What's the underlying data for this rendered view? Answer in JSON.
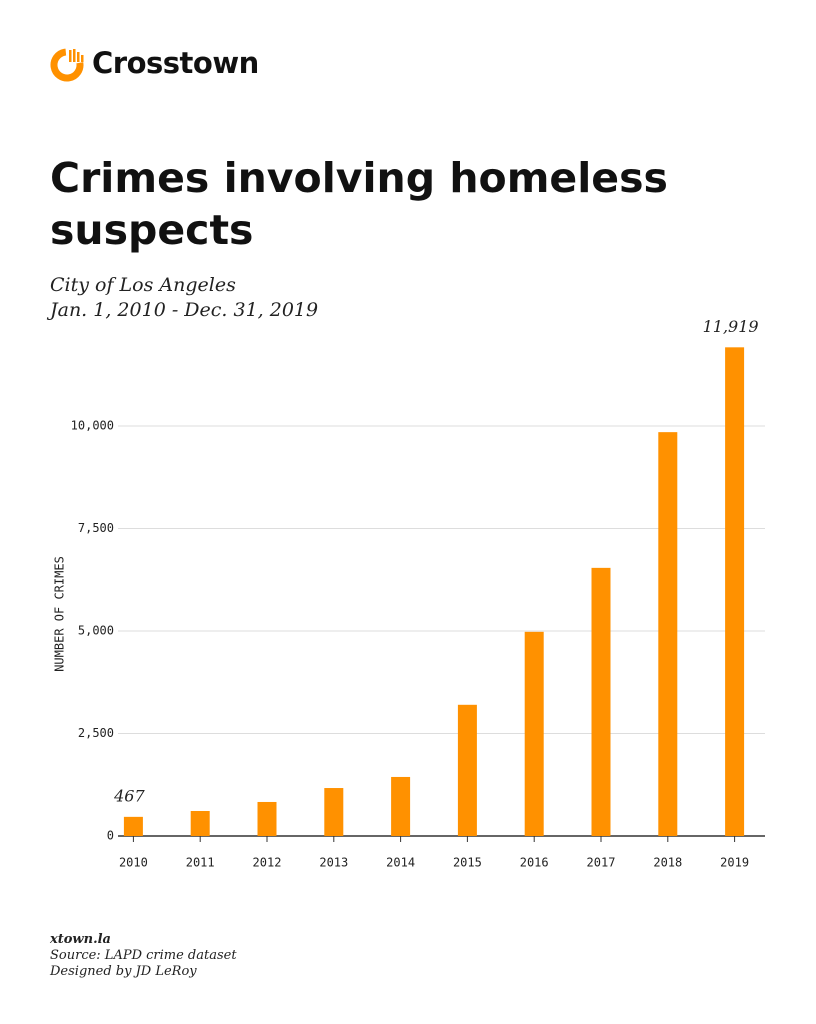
{
  "brand": "Crosstown",
  "chart_data": {
    "type": "bar",
    "title": "Crimes involving homeless suspects",
    "subtitle": [
      "City of Los Angeles",
      "Jan. 1, 2010 - Dec. 31, 2019"
    ],
    "y_label": "NUMBER OF CRIMES",
    "categories": [
      "2010",
      "2011",
      "2012",
      "2013",
      "2014",
      "2015",
      "2016",
      "2017",
      "2018",
      "2019"
    ],
    "values": [
      467,
      610,
      830,
      1170,
      1440,
      3200,
      4980,
      6540,
      9850,
      11919
    ],
    "value_labels": [
      "467",
      null,
      null,
      null,
      null,
      null,
      null,
      null,
      null,
      "11,919"
    ],
    "color": "#ff9100",
    "ylim": [
      0,
      12000
    ],
    "yticks": [
      0,
      {
        "value": 2500,
        "label": "2,500"
      },
      {
        "value": 5000,
        "label": "5,000"
      },
      {
        "value": 7500,
        "label": "7,500"
      },
      {
        "value": 10000,
        "label": "10,000"
      }
    ],
    "grid": true
  },
  "footer": [
    "xtown.la",
    "Source: LAPD crime dataset",
    "Designed by JD LeRoy"
  ]
}
